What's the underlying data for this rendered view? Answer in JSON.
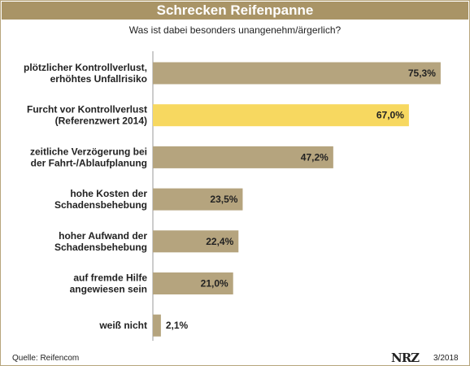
{
  "header": {
    "title": "Schrecken Reifenpanne",
    "subtitle": "Was ist dabei besonders unangenehm/ärgerlich?"
  },
  "footer": {
    "source": "Quelle: Reifencom",
    "logo": "NRZ",
    "date": "3/2018"
  },
  "colors": {
    "bar": "#b5a47e",
    "highlight": "#f7d860",
    "title_bg": "#a99466"
  },
  "chart_data": {
    "type": "bar",
    "orientation": "horizontal",
    "title": "Schrecken Reifenpanne",
    "subtitle": "Was ist dabei besonders unangenehm/ärgerlich?",
    "unit": "%",
    "xlim": [
      0,
      100
    ],
    "grid": false,
    "categories": [
      [
        "plötzlicher Kontrollverlust,",
        "erhöhtes Unfallrisiko"
      ],
      [
        "Furcht vor Kontrollverlust",
        "(Referenzwert 2014)"
      ],
      [
        "zeitliche Verzögerung bei",
        "der Fahrt-/Ablaufplanung"
      ],
      [
        "hohe Kosten der",
        "Schadensbehebung"
      ],
      [
        "hoher Aufwand der",
        "Schadensbehebung"
      ],
      [
        "auf fremde Hilfe",
        "angewiesen sein"
      ],
      [
        "weiß nicht"
      ]
    ],
    "values": [
      75.3,
      67.0,
      47.2,
      23.5,
      22.4,
      21.0,
      2.1
    ],
    "value_labels": [
      "75,3%",
      "67,0%",
      "47,2%",
      "23,5%",
      "22,4%",
      "21,0%",
      "2,1%"
    ],
    "highlight_index": 1
  }
}
